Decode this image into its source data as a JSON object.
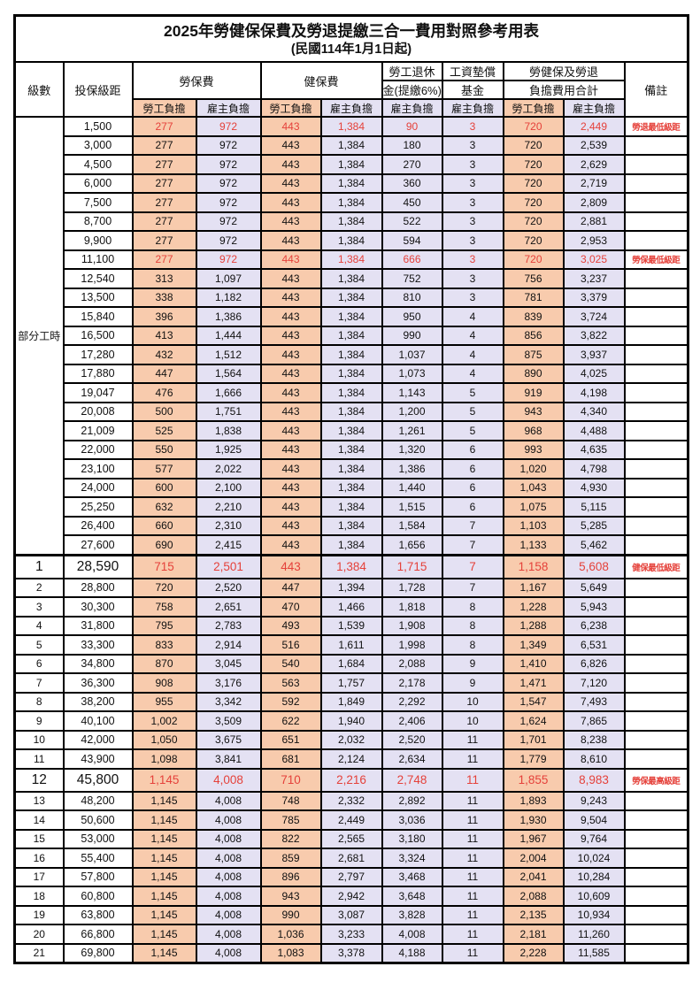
{
  "title": "2025年勞健保保費及勞退提繳三合一費用對照參考用表",
  "subtitle": "(民國114年1月1日起)",
  "header": {
    "col_level": "級數",
    "col_bracket": "投保級距",
    "group_labor": "勞保費",
    "group_health": "健保費",
    "group_pension_l1": "勞工退休",
    "group_pension_l2": "金(提繳6%)",
    "group_wagefund_l1": "工資墊償",
    "group_wagefund_l2": "基金",
    "group_total_l1": "勞健保及勞退",
    "group_total_l2": "負擔費用合計",
    "col_remark": "備註",
    "sub_employee": "勞工負擔",
    "sub_employer": "雇主負擔"
  },
  "part_time_label": "部分工時",
  "part_time_rowspan": 23,
  "colors": {
    "employee_bg": "#F8CBAD",
    "employer_bg": "#E4E1F3",
    "highlight_red": "#E5413A",
    "border": "#000000"
  },
  "rows": [
    {
      "level": "",
      "bracket": "1,500",
      "v": [
        "277",
        "972",
        "443",
        "1,384",
        "90",
        "3",
        "720",
        "2,449"
      ],
      "remark": "勞退最低級距",
      "red": true,
      "emphasis": false
    },
    {
      "level": "",
      "bracket": "3,000",
      "v": [
        "277",
        "972",
        "443",
        "1,384",
        "180",
        "3",
        "720",
        "2,539"
      ],
      "remark": "",
      "red": false,
      "emphasis": false
    },
    {
      "level": "",
      "bracket": "4,500",
      "v": [
        "277",
        "972",
        "443",
        "1,384",
        "270",
        "3",
        "720",
        "2,629"
      ],
      "remark": "",
      "red": false,
      "emphasis": false
    },
    {
      "level": "",
      "bracket": "6,000",
      "v": [
        "277",
        "972",
        "443",
        "1,384",
        "360",
        "3",
        "720",
        "2,719"
      ],
      "remark": "",
      "red": false,
      "emphasis": false
    },
    {
      "level": "",
      "bracket": "7,500",
      "v": [
        "277",
        "972",
        "443",
        "1,384",
        "450",
        "3",
        "720",
        "2,809"
      ],
      "remark": "",
      "red": false,
      "emphasis": false
    },
    {
      "level": "",
      "bracket": "8,700",
      "v": [
        "277",
        "972",
        "443",
        "1,384",
        "522",
        "3",
        "720",
        "2,881"
      ],
      "remark": "",
      "red": false,
      "emphasis": false
    },
    {
      "level": "",
      "bracket": "9,900",
      "v": [
        "277",
        "972",
        "443",
        "1,384",
        "594",
        "3",
        "720",
        "2,953"
      ],
      "remark": "",
      "red": false,
      "emphasis": false
    },
    {
      "level": "",
      "bracket": "11,100",
      "v": [
        "277",
        "972",
        "443",
        "1,384",
        "666",
        "3",
        "720",
        "3,025"
      ],
      "remark": "勞保最低級距",
      "red": true,
      "emphasis": false
    },
    {
      "level": "",
      "bracket": "12,540",
      "v": [
        "313",
        "1,097",
        "443",
        "1,384",
        "752",
        "3",
        "756",
        "3,237"
      ],
      "remark": "",
      "red": false,
      "emphasis": false
    },
    {
      "level": "",
      "bracket": "13,500",
      "v": [
        "338",
        "1,182",
        "443",
        "1,384",
        "810",
        "3",
        "781",
        "3,379"
      ],
      "remark": "",
      "red": false,
      "emphasis": false
    },
    {
      "level": "",
      "bracket": "15,840",
      "v": [
        "396",
        "1,386",
        "443",
        "1,384",
        "950",
        "4",
        "839",
        "3,724"
      ],
      "remark": "",
      "red": false,
      "emphasis": false
    },
    {
      "level": "",
      "bracket": "16,500",
      "v": [
        "413",
        "1,444",
        "443",
        "1,384",
        "990",
        "4",
        "856",
        "3,822"
      ],
      "remark": "",
      "red": false,
      "emphasis": false
    },
    {
      "level": "",
      "bracket": "17,280",
      "v": [
        "432",
        "1,512",
        "443",
        "1,384",
        "1,037",
        "4",
        "875",
        "3,937"
      ],
      "remark": "",
      "red": false,
      "emphasis": false
    },
    {
      "level": "",
      "bracket": "17,880",
      "v": [
        "447",
        "1,564",
        "443",
        "1,384",
        "1,073",
        "4",
        "890",
        "4,025"
      ],
      "remark": "",
      "red": false,
      "emphasis": false
    },
    {
      "level": "",
      "bracket": "19,047",
      "v": [
        "476",
        "1,666",
        "443",
        "1,384",
        "1,143",
        "5",
        "919",
        "4,198"
      ],
      "remark": "",
      "red": false,
      "emphasis": false
    },
    {
      "level": "",
      "bracket": "20,008",
      "v": [
        "500",
        "1,751",
        "443",
        "1,384",
        "1,200",
        "5",
        "943",
        "4,340"
      ],
      "remark": "",
      "red": false,
      "emphasis": false
    },
    {
      "level": "",
      "bracket": "21,009",
      "v": [
        "525",
        "1,838",
        "443",
        "1,384",
        "1,261",
        "5",
        "968",
        "4,488"
      ],
      "remark": "",
      "red": false,
      "emphasis": false
    },
    {
      "level": "",
      "bracket": "22,000",
      "v": [
        "550",
        "1,925",
        "443",
        "1,384",
        "1,320",
        "6",
        "993",
        "4,635"
      ],
      "remark": "",
      "red": false,
      "emphasis": false
    },
    {
      "level": "",
      "bracket": "23,100",
      "v": [
        "577",
        "2,022",
        "443",
        "1,384",
        "1,386",
        "6",
        "1,020",
        "4,798"
      ],
      "remark": "",
      "red": false,
      "emphasis": false
    },
    {
      "level": "",
      "bracket": "24,000",
      "v": [
        "600",
        "2,100",
        "443",
        "1,384",
        "1,440",
        "6",
        "1,043",
        "4,930"
      ],
      "remark": "",
      "red": false,
      "emphasis": false
    },
    {
      "level": "",
      "bracket": "25,250",
      "v": [
        "632",
        "2,210",
        "443",
        "1,384",
        "1,515",
        "6",
        "1,075",
        "5,115"
      ],
      "remark": "",
      "red": false,
      "emphasis": false
    },
    {
      "level": "",
      "bracket": "26,400",
      "v": [
        "660",
        "2,310",
        "443",
        "1,384",
        "1,584",
        "7",
        "1,103",
        "5,285"
      ],
      "remark": "",
      "red": false,
      "emphasis": false
    },
    {
      "level": "",
      "bracket": "27,600",
      "v": [
        "690",
        "2,415",
        "443",
        "1,384",
        "1,656",
        "7",
        "1,133",
        "5,462"
      ],
      "remark": "",
      "red": false,
      "emphasis": false
    },
    {
      "level": "1",
      "bracket": "28,590",
      "v": [
        "715",
        "2,501",
        "443",
        "1,384",
        "1,715",
        "7",
        "1,158",
        "5,608"
      ],
      "remark": "健保最低級距",
      "red": true,
      "emphasis": true
    },
    {
      "level": "2",
      "bracket": "28,800",
      "v": [
        "720",
        "2,520",
        "447",
        "1,394",
        "1,728",
        "7",
        "1,167",
        "5,649"
      ],
      "remark": "",
      "red": false,
      "emphasis": false
    },
    {
      "level": "3",
      "bracket": "30,300",
      "v": [
        "758",
        "2,651",
        "470",
        "1,466",
        "1,818",
        "8",
        "1,228",
        "5,943"
      ],
      "remark": "",
      "red": false,
      "emphasis": false
    },
    {
      "level": "4",
      "bracket": "31,800",
      "v": [
        "795",
        "2,783",
        "493",
        "1,539",
        "1,908",
        "8",
        "1,288",
        "6,238"
      ],
      "remark": "",
      "red": false,
      "emphasis": false
    },
    {
      "level": "5",
      "bracket": "33,300",
      "v": [
        "833",
        "2,914",
        "516",
        "1,611",
        "1,998",
        "8",
        "1,349",
        "6,531"
      ],
      "remark": "",
      "red": false,
      "emphasis": false
    },
    {
      "level": "6",
      "bracket": "34,800",
      "v": [
        "870",
        "3,045",
        "540",
        "1,684",
        "2,088",
        "9",
        "1,410",
        "6,826"
      ],
      "remark": "",
      "red": false,
      "emphasis": false
    },
    {
      "level": "7",
      "bracket": "36,300",
      "v": [
        "908",
        "3,176",
        "563",
        "1,757",
        "2,178",
        "9",
        "1,471",
        "7,120"
      ],
      "remark": "",
      "red": false,
      "emphasis": false
    },
    {
      "level": "8",
      "bracket": "38,200",
      "v": [
        "955",
        "3,342",
        "592",
        "1,849",
        "2,292",
        "10",
        "1,547",
        "7,493"
      ],
      "remark": "",
      "red": false,
      "emphasis": false
    },
    {
      "level": "9",
      "bracket": "40,100",
      "v": [
        "1,002",
        "3,509",
        "622",
        "1,940",
        "2,406",
        "10",
        "1,624",
        "7,865"
      ],
      "remark": "",
      "red": false,
      "emphasis": false
    },
    {
      "level": "10",
      "bracket": "42,000",
      "v": [
        "1,050",
        "3,675",
        "651",
        "2,032",
        "2,520",
        "11",
        "1,701",
        "8,238"
      ],
      "remark": "",
      "red": false,
      "emphasis": false
    },
    {
      "level": "11",
      "bracket": "43,900",
      "v": [
        "1,098",
        "3,841",
        "681",
        "2,124",
        "2,634",
        "11",
        "1,779",
        "8,610"
      ],
      "remark": "",
      "red": false,
      "emphasis": false
    },
    {
      "level": "12",
      "bracket": "45,800",
      "v": [
        "1,145",
        "4,008",
        "710",
        "2,216",
        "2,748",
        "11",
        "1,855",
        "8,983"
      ],
      "remark": "勞保最高級距",
      "red": true,
      "emphasis": true
    },
    {
      "level": "13",
      "bracket": "48,200",
      "v": [
        "1,145",
        "4,008",
        "748",
        "2,332",
        "2,892",
        "11",
        "1,893",
        "9,243"
      ],
      "remark": "",
      "red": false,
      "emphasis": false
    },
    {
      "level": "14",
      "bracket": "50,600",
      "v": [
        "1,145",
        "4,008",
        "785",
        "2,449",
        "3,036",
        "11",
        "1,930",
        "9,504"
      ],
      "remark": "",
      "red": false,
      "emphasis": false
    },
    {
      "level": "15",
      "bracket": "53,000",
      "v": [
        "1,145",
        "4,008",
        "822",
        "2,565",
        "3,180",
        "11",
        "1,967",
        "9,764"
      ],
      "remark": "",
      "red": false,
      "emphasis": false
    },
    {
      "level": "16",
      "bracket": "55,400",
      "v": [
        "1,145",
        "4,008",
        "859",
        "2,681",
        "3,324",
        "11",
        "2,004",
        "10,024"
      ],
      "remark": "",
      "red": false,
      "emphasis": false
    },
    {
      "level": "17",
      "bracket": "57,800",
      "v": [
        "1,145",
        "4,008",
        "896",
        "2,797",
        "3,468",
        "11",
        "2,041",
        "10,284"
      ],
      "remark": "",
      "red": false,
      "emphasis": false
    },
    {
      "level": "18",
      "bracket": "60,800",
      "v": [
        "1,145",
        "4,008",
        "943",
        "2,942",
        "3,648",
        "11",
        "2,088",
        "10,609"
      ],
      "remark": "",
      "red": false,
      "emphasis": false
    },
    {
      "level": "19",
      "bracket": "63,800",
      "v": [
        "1,145",
        "4,008",
        "990",
        "3,087",
        "3,828",
        "11",
        "2,135",
        "10,934"
      ],
      "remark": "",
      "red": false,
      "emphasis": false
    },
    {
      "level": "20",
      "bracket": "66,800",
      "v": [
        "1,145",
        "4,008",
        "1,036",
        "3,233",
        "4,008",
        "11",
        "2,181",
        "11,260"
      ],
      "remark": "",
      "red": false,
      "emphasis": false
    },
    {
      "level": "21",
      "bracket": "69,800",
      "v": [
        "1,145",
        "4,008",
        "1,083",
        "3,378",
        "4,188",
        "11",
        "2,228",
        "11,585"
      ],
      "remark": "",
      "red": false,
      "emphasis": false
    }
  ]
}
